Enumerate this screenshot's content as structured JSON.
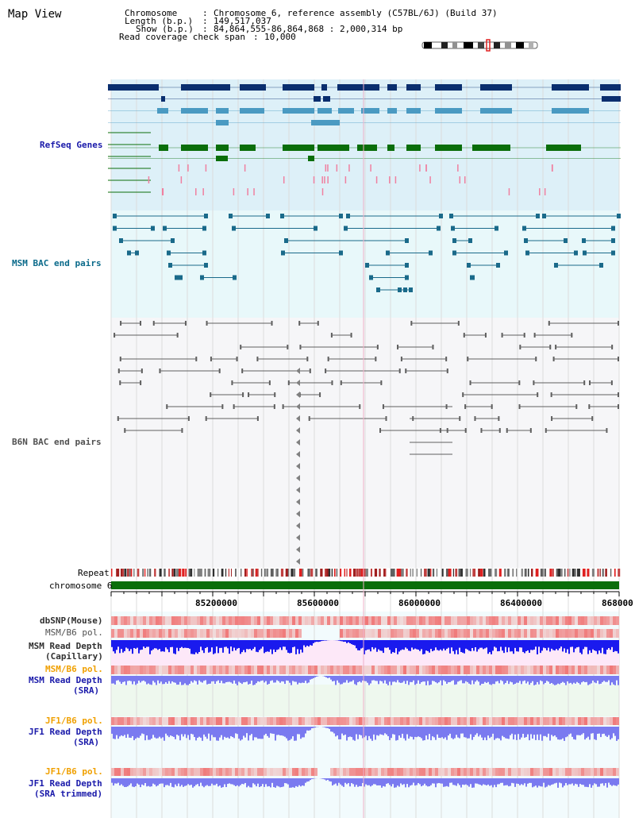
{
  "header": {
    "title": "Map View",
    "chromosome_label": "Chromosome",
    "chromosome_value": "Chromosome 6, reference assembly (C57BL/6J) (Build 37)",
    "length_label": "Length (b.p.)",
    "length_value": "149,517,037",
    "show_label": "Show (b.p.)",
    "show_value": "84,864,555-86,864,868 : 2,000,314 bp",
    "coverage_label": "Read coverage check span",
    "coverage_value": "10,000"
  },
  "tracks": {
    "refseq": "RefSeq Genes",
    "msm_bac": "MSM BAC end pairs",
    "b6n_bac": "B6N BAC end pairs",
    "repeat": "Repeat",
    "chromosome": "chromosome 6",
    "dbsnp": "dbSNP(Mouse)",
    "msm_b6_pol_cap": "MSM/B6 pol.",
    "msm_depth_cap_1": "MSM Read Depth",
    "msm_depth_cap_2": "(Capillary)",
    "msm_b6_pol_sra": "MSM/B6 pol.",
    "msm_depth_sra_1": "MSM Read Depth",
    "msm_depth_sra_2": "(SRA)",
    "jf1_b6_pol_1": "JF1/B6 pol.",
    "jf1_depth_sra_1": "JF1 Read Depth",
    "jf1_depth_sra_2": "(SRA)",
    "jf1_b6_pol_2": "JF1/B6 pol.",
    "jf1_depth_trim_1": "JF1 Read Depth",
    "jf1_depth_trim_2": "(SRA trimmed)"
  },
  "axis": {
    "ticks": [
      "85200000",
      "85600000",
      "86000000",
      "86400000",
      "868000"
    ]
  },
  "colors": {
    "refseq_bg": "#ddf0f8",
    "msm_bg": "#e8f8fa",
    "b6n_bg": "#f6f6f8",
    "gene_dark": "#0a2e6e",
    "gene_mid": "#4a9ac2",
    "gene_green": "#0a6e0a",
    "gene_pink": "#f080a0",
    "msm_line": "#1a6a8a",
    "b6n_line": "#606060",
    "chromosome_bar": "#0a6e0a",
    "label_blue": "#1a1aaa",
    "label_teal": "#0a6a8a",
    "label_orange": "#f0a000",
    "label_gray": "#303030",
    "depth_blue": "#1a1aee",
    "depth_light": "#7a7af0",
    "pol_red": "#e02020"
  }
}
